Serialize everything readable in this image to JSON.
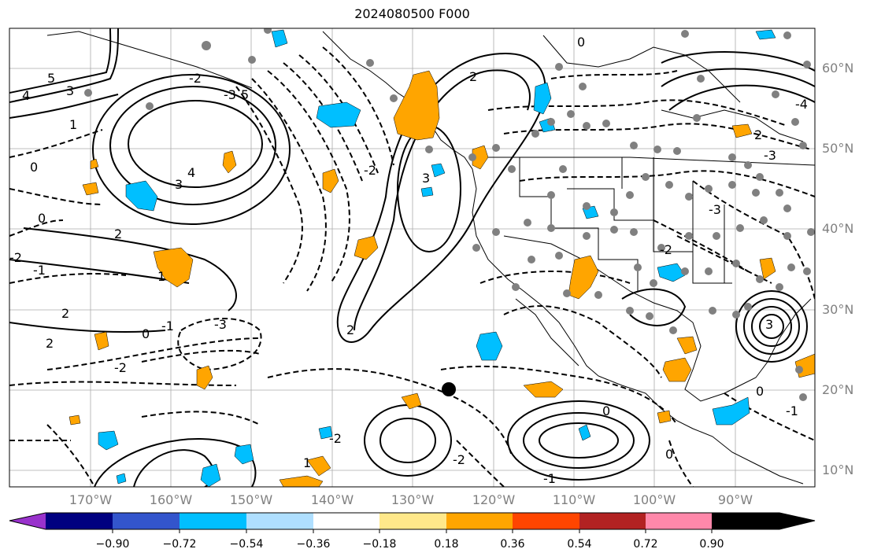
{
  "title": "2024080500 F000",
  "map": {
    "lon_labels": [
      "170°W",
      "160°W",
      "150°W",
      "140°W",
      "130°W",
      "120°W",
      "110°W",
      "100°W",
      "90°W"
    ],
    "lat_labels": [
      "60°N",
      "50°N",
      "40°N",
      "30°N",
      "20°N",
      "10°N"
    ],
    "contour_labels": [
      "5",
      "3",
      "4",
      "1",
      "0",
      "-2",
      "-3",
      "5",
      "4",
      "3",
      "2",
      "0",
      "-1",
      "-2",
      "1",
      "2",
      "2",
      "-3",
      "-1",
      "0",
      "-2",
      "2",
      "3",
      "-2",
      "0",
      "0",
      "-2",
      "1",
      "2",
      "0",
      "-1",
      "-2",
      "-3",
      "-4",
      "3",
      "2",
      "0",
      "-1",
      "-2",
      "-3"
    ],
    "marker_point": {
      "lon": -125,
      "lat": 20,
      "label": ""
    },
    "colors": {
      "positive_shading": "#ffa500",
      "negative_shading": "#00bfff",
      "station_dots": "#808080",
      "contour": "#000000",
      "grid": "#999999"
    }
  },
  "colorbar": {
    "colors": [
      "#9932cc",
      "#000080",
      "#3355cc",
      "#00bfff",
      "#afdfff",
      "#ffffff",
      "#ffe88a",
      "#ffa500",
      "#ff4500",
      "#b22222",
      "#ff88aa"
    ],
    "tick_labels": [
      "−0.90",
      "−0.72",
      "−0.54",
      "−0.36",
      "−0.18",
      "0.18",
      "0.36",
      "0.54",
      "0.72",
      "0.90"
    ]
  }
}
